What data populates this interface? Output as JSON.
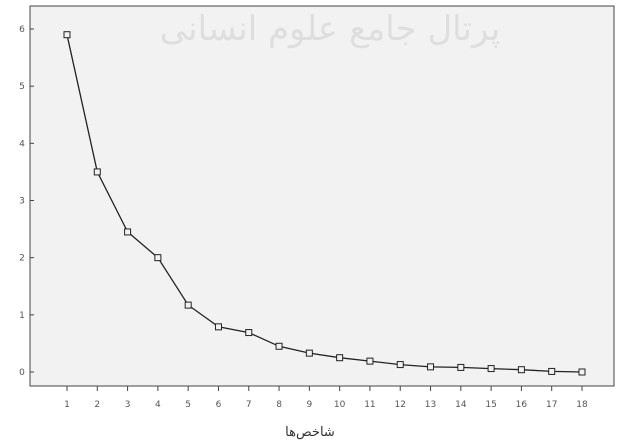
{
  "chart_data": {
    "type": "line",
    "title": "",
    "xlabel": "شاخص‌ها",
    "ylabel": "",
    "x": [
      1,
      2,
      3,
      4,
      5,
      6,
      7,
      8,
      9,
      10,
      11,
      12,
      13,
      14,
      15,
      16,
      17,
      18
    ],
    "xticks": [
      "1",
      "2",
      "3",
      "4",
      "5",
      "6",
      "7",
      "8",
      "9",
      "10",
      "11",
      "12",
      "13",
      "14",
      "15",
      "16",
      "17",
      "18"
    ],
    "yticks": [
      "0",
      "1",
      "2",
      "3",
      "4",
      "5",
      "6"
    ],
    "series": [
      {
        "name": "",
        "values": [
          5.9,
          3.5,
          2.45,
          2.0,
          1.17,
          0.79,
          0.69,
          0.45,
          0.33,
          0.25,
          0.19,
          0.13,
          0.09,
          0.08,
          0.06,
          0.04,
          0.01,
          0.0
        ]
      }
    ],
    "ylim": [
      0,
      6.3
    ],
    "grid": false,
    "marker": "hollow-square",
    "line_color": "#222222",
    "plot_background": "#f2f2f2"
  },
  "watermark": {
    "text": "پرتال جامع علوم انسانی"
  }
}
